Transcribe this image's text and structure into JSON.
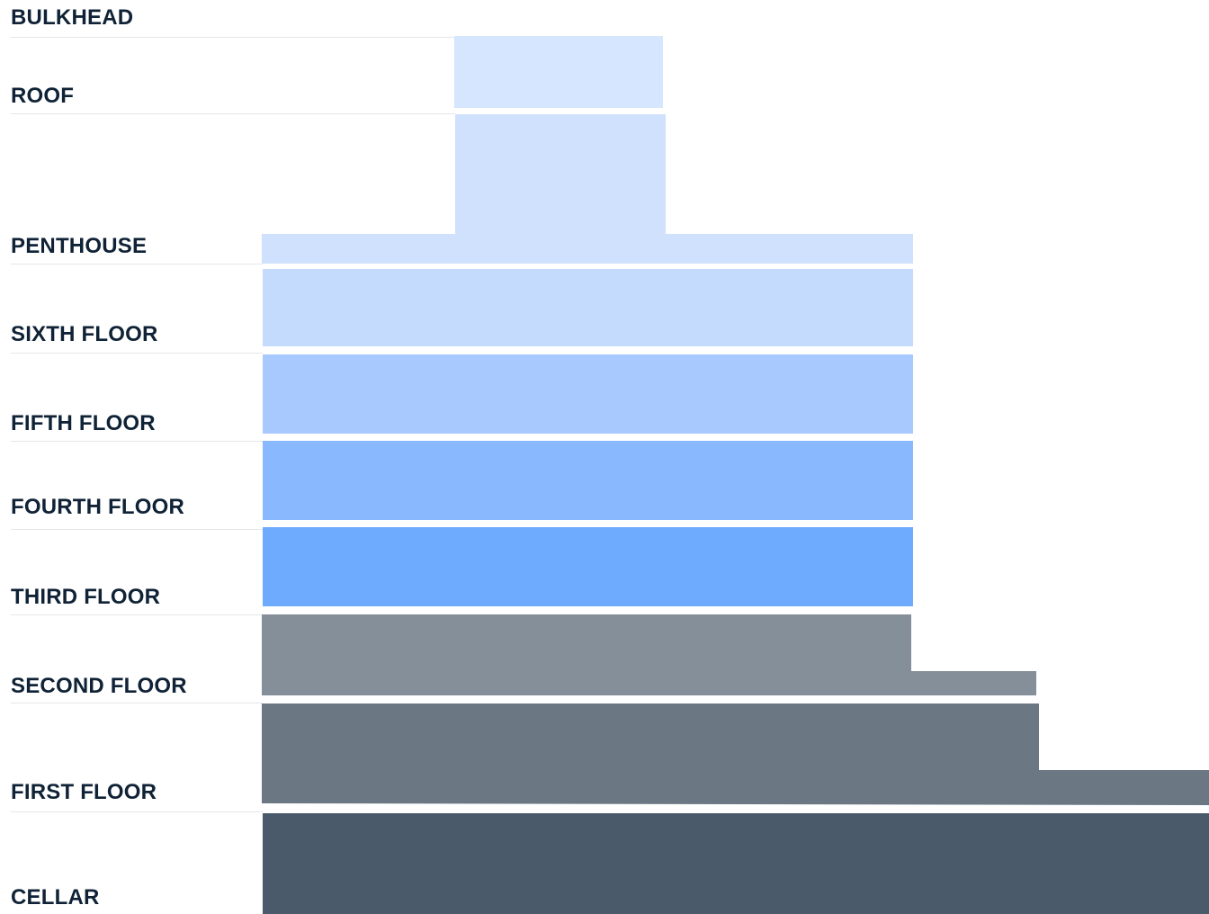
{
  "floors": [
    {
      "key": "bulkhead",
      "label": "BULKHEAD"
    },
    {
      "key": "roof",
      "label": "ROOF"
    },
    {
      "key": "penthouse",
      "label": "PENTHOUSE"
    },
    {
      "key": "sixth",
      "label": "SIXTH FLOOR"
    },
    {
      "key": "fifth",
      "label": "FIFTH FLOOR"
    },
    {
      "key": "fourth",
      "label": "FOURTH FLOOR"
    },
    {
      "key": "third",
      "label": "THIRD FLOOR"
    },
    {
      "key": "second",
      "label": "SECOND FLOOR"
    },
    {
      "key": "first",
      "label": "FIRST FLOOR"
    },
    {
      "key": "cellar",
      "label": "CELLAR"
    }
  ],
  "colors": {
    "label_text": "#0f2236",
    "divider": "#e3e6ea",
    "bulkhead_block": "#d6e6fe",
    "roof_block": "#cfe1fd",
    "penthouse_block": "#cfe1fd",
    "sixth_block": "#c4dbfe",
    "fifth_block": "#a7c9fe",
    "fourth_block": "#8ab8fe",
    "third_block": "#6eaafe",
    "second_block": "#848f99",
    "first_block": "#6b7783",
    "cellar_block": "#4a5a6a"
  }
}
